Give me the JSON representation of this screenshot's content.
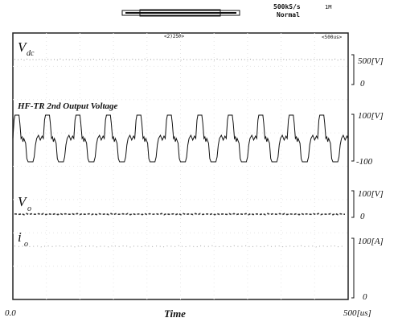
{
  "header": {
    "sample_rate": "500kS/s",
    "record_length": "1M",
    "acq_mode": "Normal",
    "position_marker": "<2)250>",
    "right_marker": "<500us>"
  },
  "chart_data": [
    {
      "type": "line",
      "trace": "vdc",
      "label_main": "V",
      "label_sub": "dc",
      "tick_labels": [
        "500[V]",
        "0"
      ],
      "ylim": [
        0,
        500
      ],
      "description_level": "flat near 0"
    },
    {
      "type": "line",
      "trace": "hf_tr_secondary",
      "title": "HF-TR 2nd Output Voltage",
      "tick_labels": [
        "100[V]",
        "-100"
      ],
      "ylim": [
        -100,
        100
      ],
      "amplitude": 100,
      "cycles": 11,
      "duration_us": 500
    },
    {
      "type": "line",
      "trace": "vo",
      "label_main": "V",
      "label_sub": "o",
      "tick_labels": [
        "100[V]",
        "0"
      ],
      "ylim": [
        0,
        100
      ]
    },
    {
      "type": "line",
      "trace": "io",
      "label_main": "i",
      "label_sub": "o",
      "tick_labels": [
        "100[A]",
        "0"
      ],
      "ylim": [
        0,
        100
      ]
    }
  ],
  "x_axis": {
    "label": "Time",
    "start": "0.0",
    "end": "500[us]",
    "xlim": [
      0,
      500
    ]
  }
}
